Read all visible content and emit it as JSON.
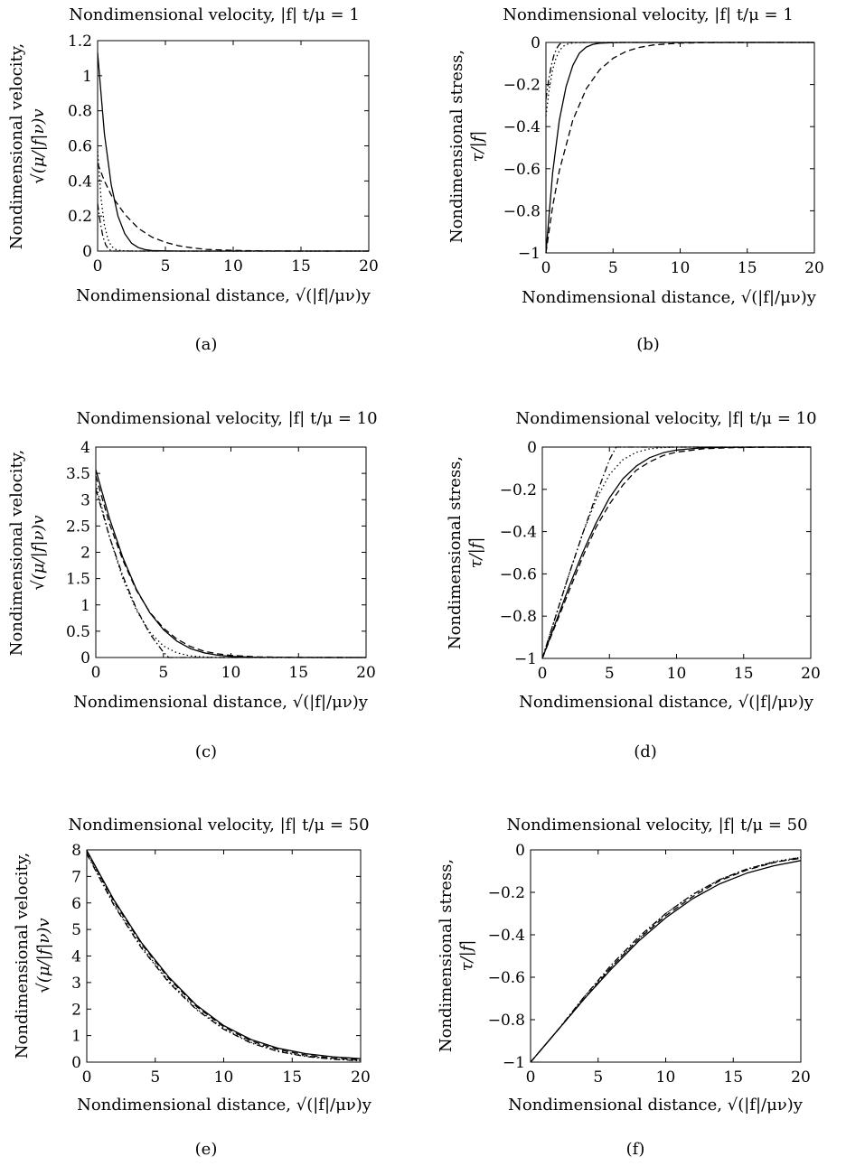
{
  "figure": {
    "panels": [
      {
        "id": "a",
        "caption": "(a)",
        "title": "Nondimensional velocity, |f|  t/μ = 1",
        "ylabel_line1": "Nondimensional velocity,",
        "ylabel_line2": "√(μ/|f|ν)v",
        "xlabel": "Nondimensional distance, √(|f|/μν)y",
        "xticks": [
          "0",
          "5",
          "10",
          "15",
          "20"
        ],
        "yticks": [
          "0",
          "0.2",
          "0.4",
          "0.6",
          "0.8",
          "1",
          "1.2"
        ]
      },
      {
        "id": "b",
        "caption": "(b)",
        "title": "Nondimensional velocity, |f|  t/μ = 1",
        "ylabel_line1": "Nondimensional stress,",
        "ylabel_line2": "τ/|f|",
        "xlabel": "Nondimensional distance, √(|f|/μν)y",
        "xticks": [
          "0",
          "5",
          "10",
          "15",
          "20"
        ],
        "yticks": [
          "−1",
          "−0.8",
          "−0.6",
          "−0.4",
          "−0.2",
          "0"
        ]
      },
      {
        "id": "c",
        "caption": "(c)",
        "title": "Nondimensional velocity, |f|  t/μ = 10",
        "ylabel_line1": "Nondimensional velocity,",
        "ylabel_line2": "√(μ/|f|ν)v",
        "xlabel": "Nondimensional distance, √(|f|/μν)y",
        "xticks": [
          "0",
          "5",
          "10",
          "15",
          "20"
        ],
        "yticks": [
          "0",
          "0.5",
          "1",
          "1.5",
          "2",
          "2.5",
          "3",
          "3.5",
          "4"
        ]
      },
      {
        "id": "d",
        "caption": "(d)",
        "title": "Nondimensional velocity, |f|  t/μ = 10",
        "ylabel_line1": "Nondimensional stress,",
        "ylabel_line2": "τ/|f|",
        "xlabel": "Nondimensional distance, √(|f|/μν)y",
        "xticks": [
          "0",
          "5",
          "10",
          "15",
          "20"
        ],
        "yticks": [
          "−1",
          "−0.8",
          "−0.6",
          "−0.4",
          "−0.2",
          "0"
        ]
      },
      {
        "id": "e",
        "caption": "(e)",
        "title": "Nondimensional velocity, |f|  t/μ = 50",
        "ylabel_line1": "Nondimensional velocity,",
        "ylabel_line2": "√(μ/|f|ν)v",
        "xlabel": "Nondimensional distance, √(|f|/μν)y",
        "xticks": [
          "0",
          "5",
          "10",
          "15",
          "20"
        ],
        "yticks": [
          "0",
          "1",
          "2",
          "3",
          "4",
          "5",
          "6",
          "7",
          "8"
        ]
      },
      {
        "id": "f",
        "caption": "(f)",
        "title": "Nondimensional velocity, |f|  t/μ = 50",
        "ylabel_line1": "Nondimensional stress,",
        "ylabel_line2": "τ/|f|",
        "xlabel": "Nondimensional distance, √(|f|/μν)y",
        "xticks": [
          "0",
          "5",
          "10",
          "15",
          "20"
        ],
        "yticks": [
          "−1",
          "−0.8",
          "−0.6",
          "−0.4",
          "−0.2",
          "0"
        ]
      }
    ]
  },
  "chart_data": [
    {
      "type": "line",
      "title": "Nondimensional velocity, |f|  t/μ = 1",
      "xlabel": "Nondimensional distance, √(|f|/μν)y",
      "ylabel": "Nondimensional velocity, √(μ/|f|ν)v",
      "xlim": [
        0,
        20
      ],
      "ylim": [
        0,
        1.2
      ],
      "grid": false,
      "series": [
        {
          "style": "solid",
          "x": [
            0,
            0.5,
            1,
            1.5,
            2,
            2.5,
            3,
            3.5,
            4,
            5,
            6,
            8,
            10,
            15,
            20
          ],
          "y": [
            1.13,
            0.67,
            0.38,
            0.2,
            0.1,
            0.045,
            0.02,
            0.008,
            0.003,
            0.001,
            0,
            0,
            0,
            0,
            0
          ]
        },
        {
          "style": "dashed",
          "x": [
            0,
            0.5,
            1,
            2,
            3,
            4,
            5,
            6,
            7,
            8,
            10,
            12,
            15,
            20
          ],
          "y": [
            0.5,
            0.4,
            0.32,
            0.21,
            0.13,
            0.08,
            0.05,
            0.03,
            0.018,
            0.01,
            0.004,
            0.001,
            0,
            0
          ]
        },
        {
          "style": "dotted",
          "x": [
            0,
            0.25,
            0.5,
            0.75,
            1,
            1.25,
            1.5,
            2,
            3,
            20
          ],
          "y": [
            0.57,
            0.3,
            0.15,
            0.07,
            0.03,
            0.012,
            0.005,
            0.001,
            0,
            0
          ]
        },
        {
          "style": "dashdot",
          "x": [
            0,
            0.2,
            0.4,
            0.6,
            0.8,
            1.0,
            1.2,
            20
          ],
          "y": [
            0.27,
            0.16,
            0.08,
            0.035,
            0.012,
            0.003,
            0,
            0
          ]
        }
      ]
    },
    {
      "type": "line",
      "title": "Nondimensional velocity, |f|  t/μ = 1",
      "xlabel": "Nondimensional distance, √(|f|/μν)y",
      "ylabel": "Nondimensional stress, τ/|f|",
      "xlim": [
        0,
        20
      ],
      "ylim": [
        -1,
        0
      ],
      "grid": false,
      "series": [
        {
          "style": "solid",
          "x": [
            0,
            0.5,
            1,
            1.5,
            2,
            2.5,
            3,
            3.5,
            4,
            5,
            6,
            20
          ],
          "y": [
            -1,
            -0.62,
            -0.37,
            -0.21,
            -0.11,
            -0.05,
            -0.022,
            -0.009,
            -0.004,
            -0.001,
            0,
            0
          ]
        },
        {
          "style": "dashed",
          "x": [
            0,
            0.5,
            1,
            2,
            3,
            4,
            5,
            6,
            7,
            8,
            10,
            12,
            15,
            20
          ],
          "y": [
            -1,
            -0.78,
            -0.61,
            -0.37,
            -0.22,
            -0.13,
            -0.075,
            -0.042,
            -0.023,
            -0.012,
            -0.003,
            -0.001,
            0,
            0
          ]
        },
        {
          "style": "dotted",
          "x": [
            0,
            0.25,
            0.5,
            0.75,
            1,
            1.25,
            1.5,
            2,
            3,
            20
          ],
          "y": [
            -0.35,
            -0.22,
            -0.13,
            -0.075,
            -0.04,
            -0.02,
            -0.01,
            -0.002,
            0,
            0
          ]
        },
        {
          "style": "dashdot",
          "x": [
            0,
            0.2,
            0.4,
            0.6,
            0.8,
            1.0,
            1.2,
            20
          ],
          "y": [
            -0.27,
            -0.18,
            -0.11,
            -0.06,
            -0.028,
            -0.01,
            0,
            0
          ]
        }
      ]
    },
    {
      "type": "line",
      "title": "Nondimensional velocity, |f|  t/μ = 10",
      "xlabel": "Nondimensional distance, √(|f|/μν)y",
      "ylabel": "Nondimensional velocity, √(μ/|f|ν)v",
      "xlim": [
        0,
        20
      ],
      "ylim": [
        0,
        4
      ],
      "grid": false,
      "series": [
        {
          "style": "solid",
          "x": [
            0,
            1,
            2,
            3,
            4,
            5,
            6,
            7,
            8,
            9,
            10,
            12,
            14,
            16,
            20
          ],
          "y": [
            3.57,
            2.65,
            1.9,
            1.3,
            0.85,
            0.53,
            0.31,
            0.17,
            0.09,
            0.045,
            0.02,
            0.004,
            0.001,
            0,
            0
          ]
        },
        {
          "style": "dashed",
          "x": [
            0,
            1,
            2,
            3,
            4,
            5,
            6,
            7,
            8,
            9,
            10,
            12,
            14,
            16,
            20
          ],
          "y": [
            3.45,
            2.55,
            1.85,
            1.28,
            0.86,
            0.56,
            0.35,
            0.21,
            0.12,
            0.07,
            0.04,
            0.012,
            0.003,
            0.001,
            0
          ]
        },
        {
          "style": "dotted",
          "x": [
            0,
            1,
            2,
            3,
            4,
            5,
            6,
            7,
            8,
            9,
            10,
            20
          ],
          "y": [
            3.3,
            2.3,
            1.5,
            0.9,
            0.48,
            0.22,
            0.09,
            0.03,
            0.01,
            0.002,
            0,
            0
          ]
        },
        {
          "style": "dashdot",
          "x": [
            0,
            1,
            2,
            3,
            4,
            5,
            5.4,
            20
          ],
          "y": [
            3.2,
            2.3,
            1.55,
            0.93,
            0.45,
            0.1,
            0,
            0
          ]
        }
      ]
    },
    {
      "type": "line",
      "title": "Nondimensional velocity, |f|  t/μ = 10",
      "xlabel": "Nondimensional distance, √(|f|/μν)y",
      "ylabel": "Nondimensional stress, τ/|f|",
      "xlim": [
        0,
        20
      ],
      "ylim": [
        -1,
        0
      ],
      "grid": false,
      "series": [
        {
          "style": "solid",
          "x": [
            0,
            1,
            2,
            3,
            4,
            5,
            6,
            7,
            8,
            9,
            10,
            12,
            14,
            16,
            20
          ],
          "y": [
            -1,
            -0.83,
            -0.66,
            -0.5,
            -0.36,
            -0.24,
            -0.15,
            -0.09,
            -0.05,
            -0.027,
            -0.014,
            -0.003,
            -0.001,
            0,
            0
          ]
        },
        {
          "style": "dashed",
          "x": [
            0,
            1,
            2,
            3,
            4,
            5,
            6,
            7,
            8,
            9,
            10,
            12,
            14,
            16,
            20
          ],
          "y": [
            -1,
            -0.84,
            -0.68,
            -0.52,
            -0.38,
            -0.27,
            -0.18,
            -0.11,
            -0.07,
            -0.04,
            -0.024,
            -0.008,
            -0.003,
            -0.001,
            0
          ]
        },
        {
          "style": "dotted",
          "x": [
            0,
            1,
            2,
            3,
            4,
            5,
            6,
            7,
            8,
            9,
            10,
            20
          ],
          "y": [
            -1,
            -0.8,
            -0.6,
            -0.41,
            -0.25,
            -0.13,
            -0.06,
            -0.025,
            -0.008,
            -0.002,
            0,
            0
          ]
        },
        {
          "style": "dashdot",
          "x": [
            0,
            1,
            2,
            3,
            4,
            5,
            5.5,
            20
          ],
          "y": [
            -1,
            -0.8,
            -0.6,
            -0.41,
            -0.23,
            -0.06,
            0,
            0
          ]
        }
      ]
    },
    {
      "type": "line",
      "title": "Nondimensional velocity, |f|  t/μ = 50",
      "xlabel": "Nondimensional distance, √(|f|/μν)y",
      "ylabel": "Nondimensional velocity, √(μ/|f|ν)v",
      "xlim": [
        0,
        20
      ],
      "ylim": [
        0,
        8
      ],
      "grid": false,
      "series": [
        {
          "style": "solid",
          "x": [
            0,
            2,
            4,
            6,
            8,
            10,
            12,
            14,
            16,
            18,
            20
          ],
          "y": [
            7.98,
            6.1,
            4.5,
            3.2,
            2.15,
            1.38,
            0.85,
            0.52,
            0.32,
            0.2,
            0.13
          ]
        },
        {
          "style": "dashed",
          "x": [
            0,
            2,
            4,
            6,
            8,
            10,
            12,
            14,
            16,
            18,
            20
          ],
          "y": [
            7.95,
            6.05,
            4.45,
            3.15,
            2.1,
            1.33,
            0.8,
            0.47,
            0.27,
            0.15,
            0.09
          ]
        },
        {
          "style": "dotted",
          "x": [
            0,
            2,
            4,
            6,
            8,
            10,
            12,
            14,
            16,
            18,
            20
          ],
          "y": [
            7.9,
            5.95,
            4.35,
            3.05,
            2.02,
            1.27,
            0.75,
            0.42,
            0.23,
            0.12,
            0.06
          ]
        },
        {
          "style": "dashdot",
          "x": [
            0,
            2,
            4,
            6,
            8,
            10,
            12,
            14,
            16,
            18,
            20
          ],
          "y": [
            7.85,
            5.9,
            4.3,
            3.0,
            1.98,
            1.24,
            0.72,
            0.4,
            0.21,
            0.11,
            0.05
          ]
        }
      ]
    },
    {
      "type": "line",
      "title": "Nondimensional velocity, |f|  t/μ = 50",
      "xlabel": "Nondimensional distance, √(|f|/μν)y",
      "ylabel": "Nondimensional stress, τ/|f|",
      "xlim": [
        0,
        20
      ],
      "ylim": [
        -1,
        0
      ],
      "grid": false,
      "series": [
        {
          "style": "solid",
          "x": [
            0,
            2,
            4,
            6,
            8,
            10,
            12,
            14,
            16,
            18,
            20
          ],
          "y": [
            -1,
            -0.85,
            -0.7,
            -0.56,
            -0.43,
            -0.32,
            -0.23,
            -0.16,
            -0.11,
            -0.075,
            -0.05
          ]
        },
        {
          "style": "dashed",
          "x": [
            0,
            2,
            4,
            6,
            8,
            10,
            12,
            14,
            16,
            18,
            20
          ],
          "y": [
            -1,
            -0.85,
            -0.7,
            -0.55,
            -0.42,
            -0.31,
            -0.22,
            -0.145,
            -0.095,
            -0.06,
            -0.035
          ]
        },
        {
          "style": "dotted",
          "x": [
            0,
            2,
            4,
            6,
            8,
            10,
            12,
            14,
            16,
            18,
            20
          ],
          "y": [
            -1,
            -0.85,
            -0.69,
            -0.55,
            -0.42,
            -0.3,
            -0.21,
            -0.14,
            -0.09,
            -0.055,
            -0.035
          ]
        },
        {
          "style": "dashdot",
          "x": [
            0,
            2,
            4,
            6,
            8,
            10,
            12,
            14,
            16,
            18,
            20
          ],
          "y": [
            -1,
            -0.85,
            -0.69,
            -0.54,
            -0.41,
            -0.3,
            -0.21,
            -0.14,
            -0.09,
            -0.058,
            -0.04
          ]
        }
      ]
    }
  ]
}
